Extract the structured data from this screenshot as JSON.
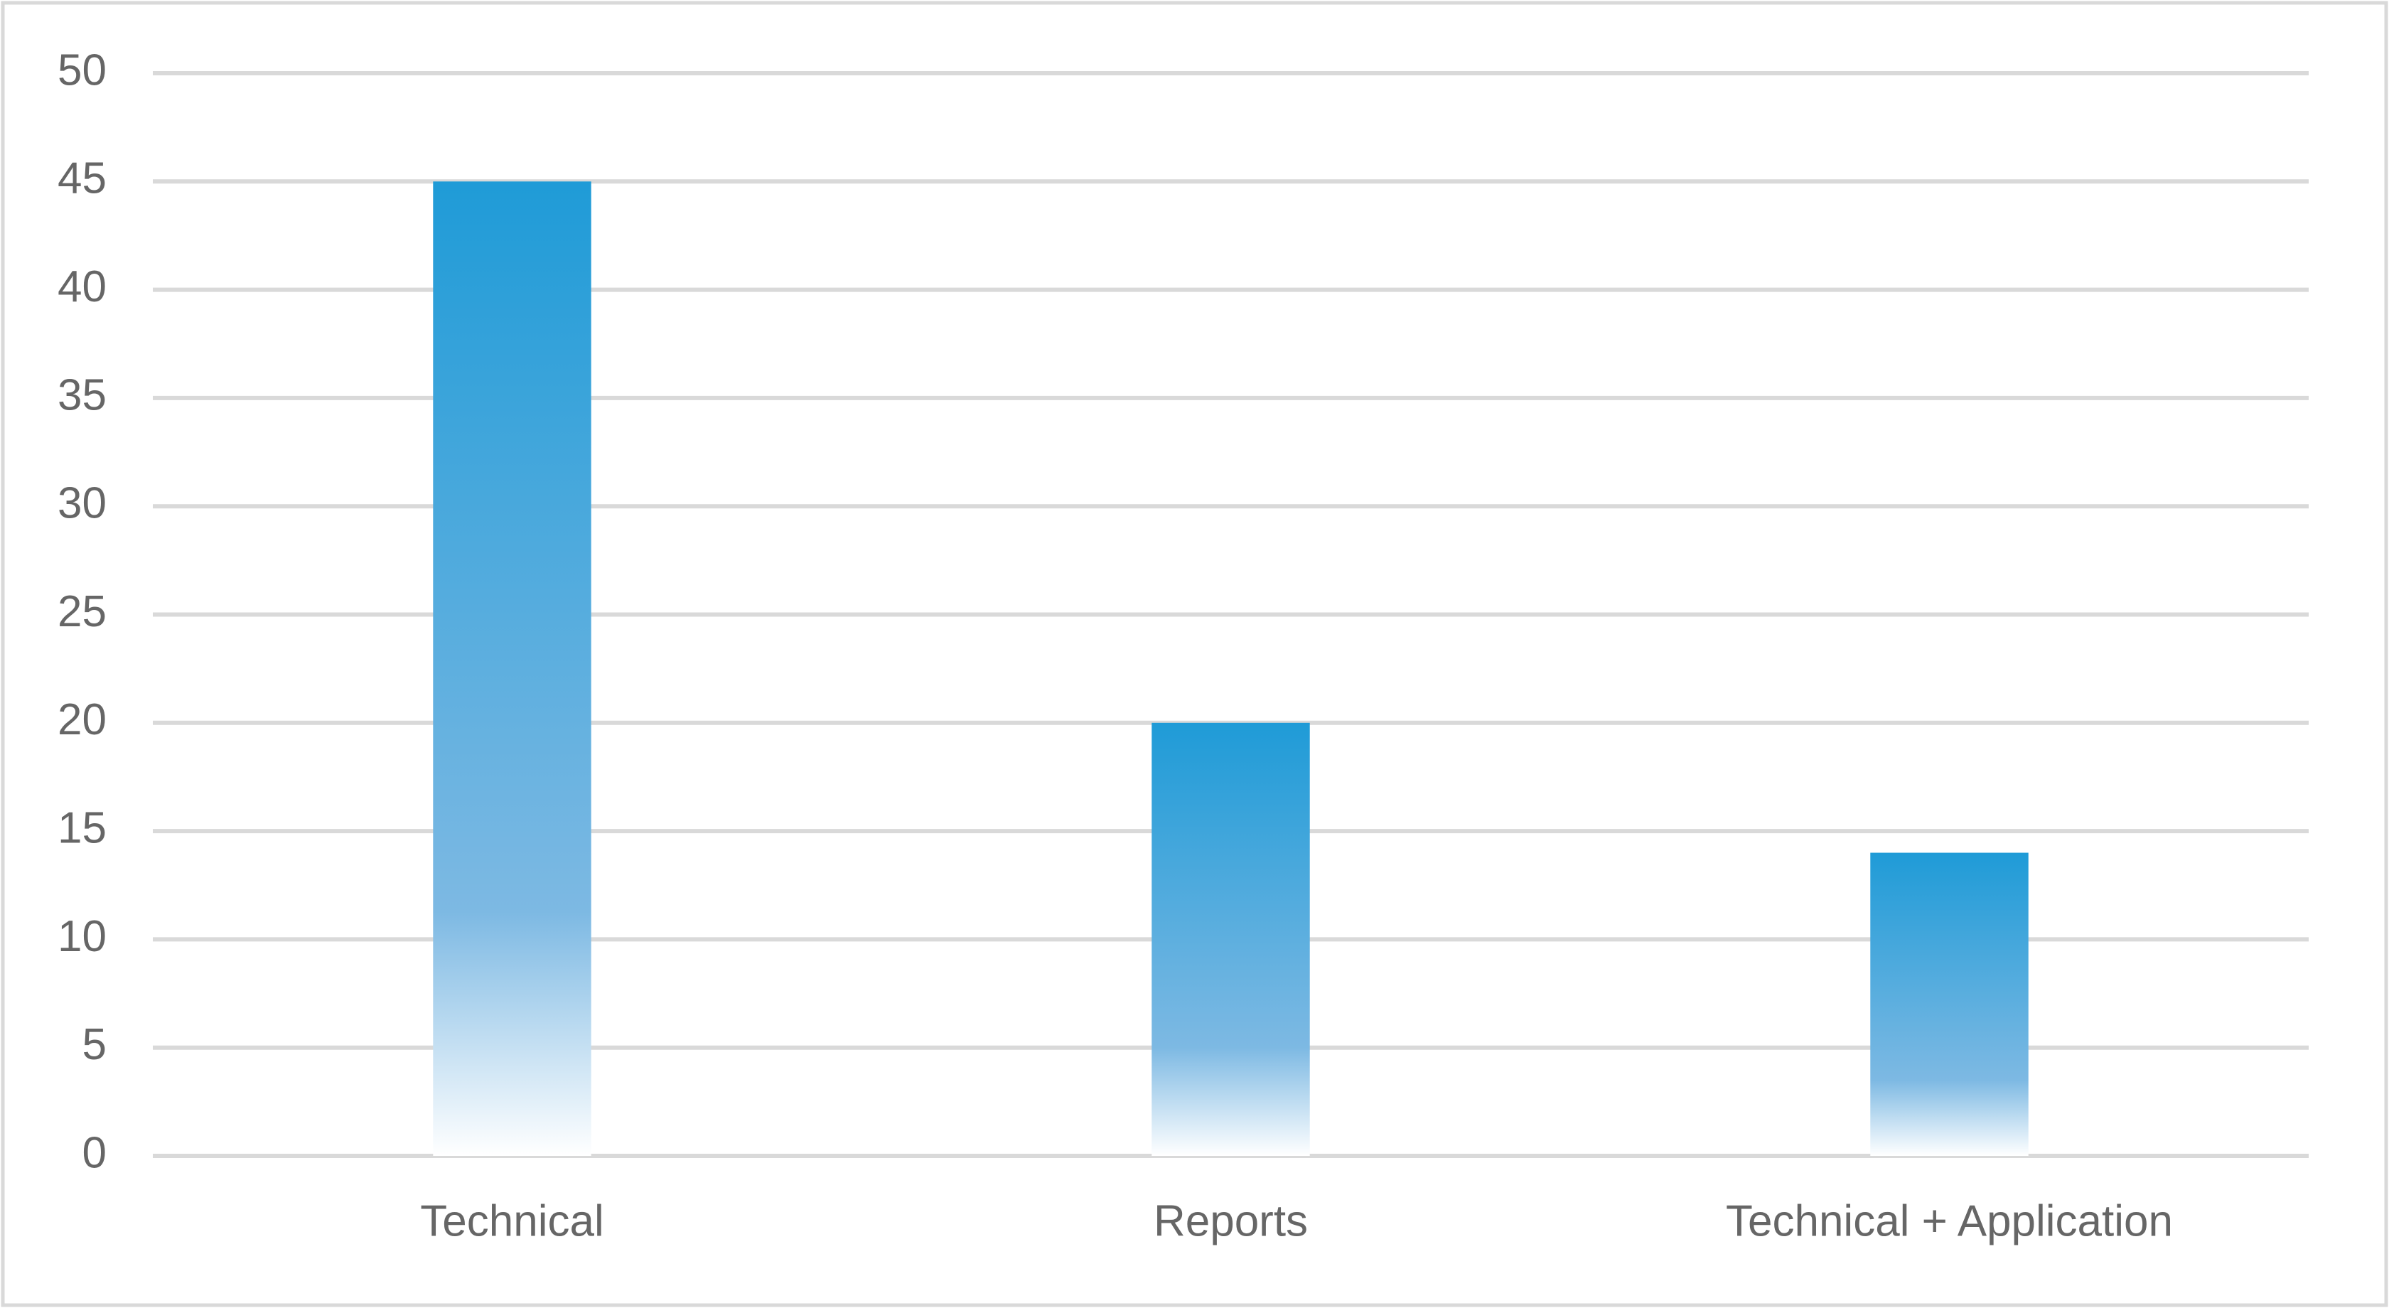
{
  "chart_data": {
    "type": "bar",
    "categories": [
      "Technical",
      "Reports",
      "Technical + Application"
    ],
    "values": [
      45,
      20,
      14
    ],
    "color": "#1f9bd7",
    "ylim": [
      0,
      50
    ],
    "yticks": [
      0,
      5,
      10,
      15,
      20,
      25,
      30,
      35,
      40,
      45,
      50
    ],
    "grid": true
  }
}
